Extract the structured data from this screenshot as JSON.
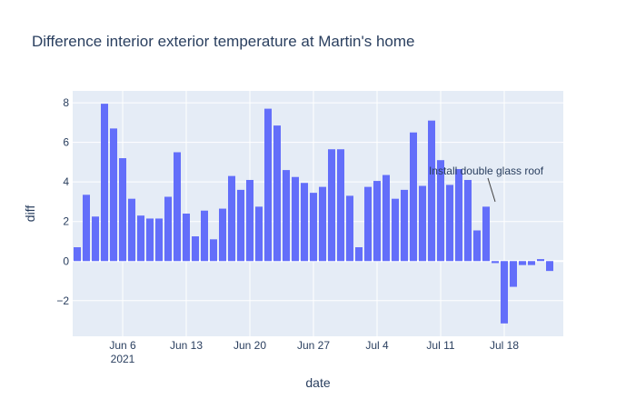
{
  "chart_data": {
    "type": "bar",
    "title": "Difference interior exterior temperature at Martin's home",
    "xlabel": "date",
    "ylabel": "diff",
    "x_start": "2021-06-01",
    "x_range": [
      "2021-05-31T12:00",
      "2021-07-24T12:00"
    ],
    "ylim": [
      -3.8,
      8.6
    ],
    "bar_color": "#636efa",
    "plot_bg": "#e5ecf6",
    "grid": true,
    "x_ticks": [
      {
        "date": "2021-06-06",
        "label": "Jun 6",
        "sublabel": "2021"
      },
      {
        "date": "2021-06-13",
        "label": "Jun 13"
      },
      {
        "date": "2021-06-20",
        "label": "Jun 20"
      },
      {
        "date": "2021-06-27",
        "label": "Jun 27"
      },
      {
        "date": "2021-07-04",
        "label": "Jul 4"
      },
      {
        "date": "2021-07-11",
        "label": "Jul 11"
      },
      {
        "date": "2021-07-18",
        "label": "Jul 18"
      }
    ],
    "y_ticks": [
      {
        "value": -2,
        "label": "−2"
      },
      {
        "value": 0,
        "label": "0"
      },
      {
        "value": 2,
        "label": "2"
      },
      {
        "value": 4,
        "label": "4"
      },
      {
        "value": 6,
        "label": "6"
      },
      {
        "value": 8,
        "label": "8"
      }
    ],
    "values": [
      0.7,
      3.35,
      2.25,
      7.95,
      6.7,
      5.2,
      3.15,
      2.3,
      2.15,
      2.15,
      3.25,
      5.5,
      2.4,
      1.25,
      2.55,
      1.1,
      2.65,
      4.3,
      3.6,
      4.1,
      2.75,
      7.7,
      6.85,
      4.6,
      4.25,
      3.95,
      3.45,
      3.75,
      5.65,
      5.65,
      3.3,
      0.7,
      3.75,
      4.05,
      4.35,
      3.15,
      3.6,
      6.5,
      3.8,
      7.1,
      5.1,
      3.85,
      4.65,
      4.1,
      1.55,
      2.75,
      -0.1,
      -3.15,
      -1.3,
      -0.2,
      -0.2,
      0.1,
      -0.5
    ],
    "annotation": {
      "text": "Install double glass roof",
      "x": "2021-07-17",
      "y": 3.0
    }
  }
}
